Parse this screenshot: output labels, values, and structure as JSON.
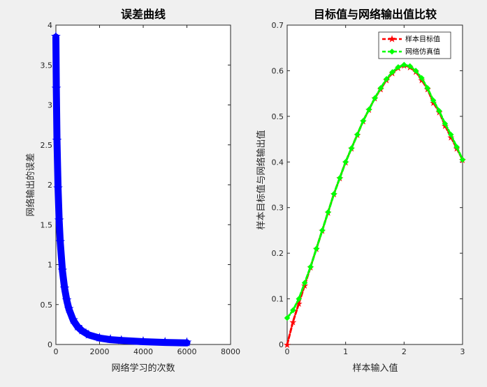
{
  "chart_data": [
    {
      "type": "line",
      "title": "误差曲线",
      "xlabel": "网络学习的次数",
      "ylabel": "网络输出的误差",
      "xlim": [
        0,
        8000
      ],
      "ylim": [
        0,
        4
      ],
      "xticks": [
        0,
        2000,
        4000,
        6000,
        8000
      ],
      "yticks": [
        0,
        0.5,
        1,
        1.5,
        2,
        2.5,
        3,
        3.5,
        4
      ],
      "grid": false,
      "legend": null,
      "series": [
        {
          "color": "#0000ff",
          "marker": "star",
          "x": [
            0,
            20,
            50,
            100,
            150,
            200,
            300,
            400,
            500,
            600,
            800,
            1000,
            1200,
            1500,
            2000,
            2500,
            3000,
            4000,
            5000,
            6000
          ],
          "y": [
            3.85,
            3.2,
            2.55,
            1.95,
            1.55,
            1.28,
            0.92,
            0.7,
            0.55,
            0.44,
            0.3,
            0.22,
            0.17,
            0.12,
            0.08,
            0.06,
            0.05,
            0.035,
            0.025,
            0.02
          ]
        }
      ]
    },
    {
      "type": "line",
      "title": "目标值与网络输出值比较",
      "xlabel": "样本输入值",
      "ylabel": "样本目标值与网络输出值",
      "xlim": [
        0,
        3
      ],
      "ylim": [
        0,
        0.7
      ],
      "xticks": [
        0,
        1,
        2,
        3
      ],
      "yticks": [
        0,
        0.1,
        0.2,
        0.3,
        0.4,
        0.5,
        0.6,
        0.7
      ],
      "grid": false,
      "legend": "top-right",
      "series": [
        {
          "name": "样本目标值",
          "color": "#ff0000",
          "style": "dashed",
          "marker": "star",
          "x": [
            0,
            0.1,
            0.2,
            0.3,
            0.4,
            0.5,
            0.6,
            0.7,
            0.8,
            0.9,
            1.0,
            1.1,
            1.2,
            1.3,
            1.4,
            1.5,
            1.6,
            1.7,
            1.8,
            1.9,
            2.0,
            2.1,
            2.2,
            2.3,
            2.4,
            2.5,
            2.6,
            2.7,
            2.8,
            2.9,
            3.0
          ],
          "y": [
            0.0,
            0.05,
            0.09,
            0.13,
            0.17,
            0.21,
            0.25,
            0.29,
            0.33,
            0.365,
            0.4,
            0.43,
            0.46,
            0.49,
            0.515,
            0.54,
            0.56,
            0.58,
            0.595,
            0.607,
            0.612,
            0.608,
            0.598,
            0.58,
            0.56,
            0.53,
            0.51,
            0.48,
            0.455,
            0.43,
            0.405
          ]
        },
        {
          "name": "网络仿真值",
          "color": "#00ff00",
          "style": "dashed",
          "marker": "diamond",
          "x": [
            0,
            0.1,
            0.2,
            0.3,
            0.4,
            0.5,
            0.6,
            0.7,
            0.8,
            0.9,
            1.0,
            1.1,
            1.2,
            1.3,
            1.4,
            1.5,
            1.6,
            1.7,
            1.8,
            1.9,
            2.0,
            2.1,
            2.2,
            2.3,
            2.4,
            2.5,
            2.6,
            2.7,
            2.8,
            2.9,
            3.0
          ],
          "y": [
            0.058,
            0.075,
            0.1,
            0.135,
            0.17,
            0.21,
            0.25,
            0.29,
            0.33,
            0.365,
            0.4,
            0.43,
            0.46,
            0.49,
            0.515,
            0.54,
            0.562,
            0.582,
            0.597,
            0.608,
            0.613,
            0.61,
            0.6,
            0.584,
            0.562,
            0.535,
            0.512,
            0.484,
            0.46,
            0.433,
            0.405
          ]
        }
      ]
    }
  ]
}
